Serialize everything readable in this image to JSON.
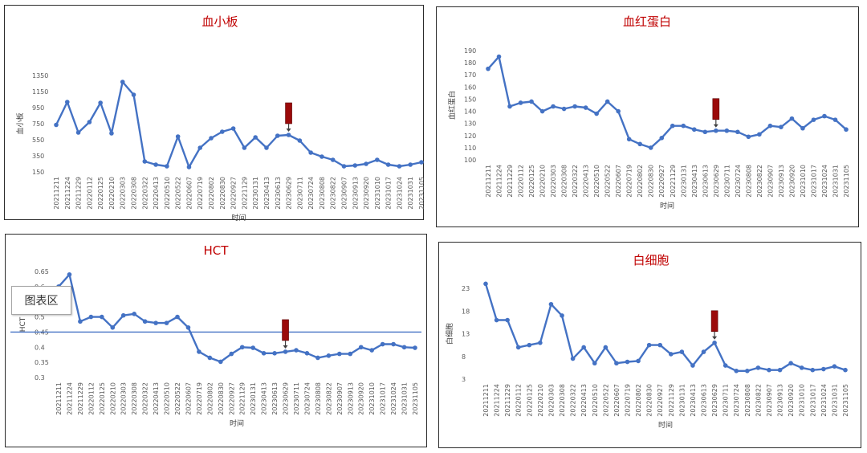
{
  "chart_data": [
    {
      "type": "line",
      "title": "血小板",
      "xlabel": "时间",
      "ylabel": "血小板",
      "ylim": [
        150,
        1350
      ],
      "yticks": [
        150,
        350,
        550,
        750,
        950,
        1150,
        1350
      ],
      "categories": [
        "20211211",
        "20211224",
        "20211229",
        "20220112",
        "20220125",
        "20220210",
        "20220303",
        "20220308",
        "20220322",
        "20220413",
        "20220510",
        "20220522",
        "20220607",
        "20220719",
        "20220802",
        "20220830",
        "20220927",
        "20221129",
        "20230131",
        "20230413",
        "20230613",
        "20230629",
        "20230711",
        "20230724",
        "20230808",
        "20230822",
        "20230907",
        "20230913",
        "20230920",
        "20231010",
        "20231017",
        "20231024",
        "20231031",
        "20231105"
      ],
      "series": [
        {
          "values": [
            735,
            1020,
            640,
            770,
            1010,
            630,
            1270,
            1110,
            280,
            240,
            220,
            590,
            210,
            450,
            570,
            650,
            690,
            450,
            580,
            450,
            600,
            610,
            540,
            390,
            340,
            300,
            220,
            230,
            250,
            300,
            240,
            220,
            240,
            270
          ]
        }
      ],
      "marker_index": 21
    },
    {
      "type": "line",
      "title": "血红蛋白",
      "xlabel": "时间",
      "ylabel": "血红蛋白",
      "ylim": [
        100,
        190
      ],
      "yticks": [
        100,
        110,
        120,
        130,
        140,
        150,
        160,
        170,
        180,
        190
      ],
      "categories": [
        "20211211",
        "20211224",
        "20211229",
        "20220112",
        "20220125",
        "20220210",
        "20220303",
        "20220308",
        "20220322",
        "20220413",
        "20220510",
        "20220522",
        "20220607",
        "20220719",
        "20220802",
        "20220830",
        "20220927",
        "20221129",
        "20230131",
        "20230413",
        "20230613",
        "20230629",
        "20230711",
        "20230724",
        "20230808",
        "20230822",
        "20230907",
        "20230913",
        "20230920",
        "20231010",
        "20231017",
        "20231024",
        "20231031",
        "20231105"
      ],
      "series": [
        {
          "values": [
            175,
            185,
            144,
            147,
            148,
            140,
            144,
            142,
            144,
            143,
            138,
            148,
            140,
            117,
            113,
            110,
            118,
            128,
            128,
            125,
            123,
            124,
            124,
            123,
            119,
            121,
            128,
            127,
            134,
            126,
            133,
            136,
            133,
            125
          ]
        }
      ],
      "marker_index": 21
    },
    {
      "type": "line",
      "title": "HCT",
      "xlabel": "时间",
      "ylabel": "HCT",
      "ylim": [
        0.3,
        0.65
      ],
      "yticks": [
        "0.3",
        "0.35",
        "0.4",
        "0.45",
        "0.5",
        "0.55",
        "0.6",
        "0.65"
      ],
      "reference_line": 0.45,
      "categories": [
        "20211211",
        "20211224",
        "20211229",
        "20220112",
        "20220125",
        "20220210",
        "20220303",
        "20220308",
        "20220322",
        "20220413",
        "20220510",
        "20220522",
        "20220607",
        "20220719",
        "20220802",
        "20220830",
        "20220927",
        "20221129",
        "20230131",
        "20230413",
        "20230613",
        "20230629",
        "20230711",
        "20230724",
        "20230808",
        "20230822",
        "20230907",
        "20230913",
        "20230920",
        "20231010",
        "20231017",
        "20231024",
        "20231031",
        "20231105"
      ],
      "series": [
        {
          "values": [
            0.6,
            0.64,
            0.485,
            0.5,
            0.5,
            0.465,
            0.505,
            0.51,
            0.485,
            0.48,
            0.48,
            0.5,
            0.465,
            0.385,
            0.365,
            0.352,
            0.378,
            0.4,
            0.398,
            0.38,
            0.38,
            0.385,
            0.39,
            0.38,
            0.365,
            0.372,
            0.378,
            0.378,
            0.4,
            0.39,
            0.41,
            0.41,
            0.4,
            0.398
          ]
        }
      ],
      "marker_index": 21
    },
    {
      "type": "line",
      "title": "白细胞",
      "xlabel": "时间",
      "ylabel": "白细胞",
      "ylim": [
        3,
        23
      ],
      "yticks": [
        3,
        8,
        13,
        18,
        23
      ],
      "categories": [
        "20211211",
        "20211224",
        "20211229",
        "20220112",
        "20220125",
        "20220210",
        "20220303",
        "20220308",
        "20220322",
        "20220413",
        "20220510",
        "20220522",
        "20220607",
        "20220719",
        "20220802",
        "20220830",
        "20220927",
        "20221129",
        "20230131",
        "20230413",
        "20230613",
        "20230629",
        "20230711",
        "20230724",
        "20230808",
        "20230822",
        "20230907",
        "20230913",
        "20230920",
        "20231010",
        "20231017",
        "20231024",
        "20231031",
        "20231105"
      ],
      "series": [
        {
          "values": [
            24,
            16,
            16,
            10,
            10.5,
            11,
            19.5,
            17,
            7.5,
            10,
            6.5,
            10,
            6.5,
            6.8,
            7,
            10.5,
            10.5,
            8.5,
            9,
            6,
            9,
            11,
            6,
            4.8,
            4.8,
            5.5,
            5,
            5,
            6.5,
            5.5,
            5,
            5.2,
            5.8,
            5
          ]
        }
      ],
      "marker_index": 21
    }
  ],
  "marker_color": "#9b0a0a",
  "line_color": "#4472c4",
  "tooltip": {
    "label": "图表区"
  }
}
